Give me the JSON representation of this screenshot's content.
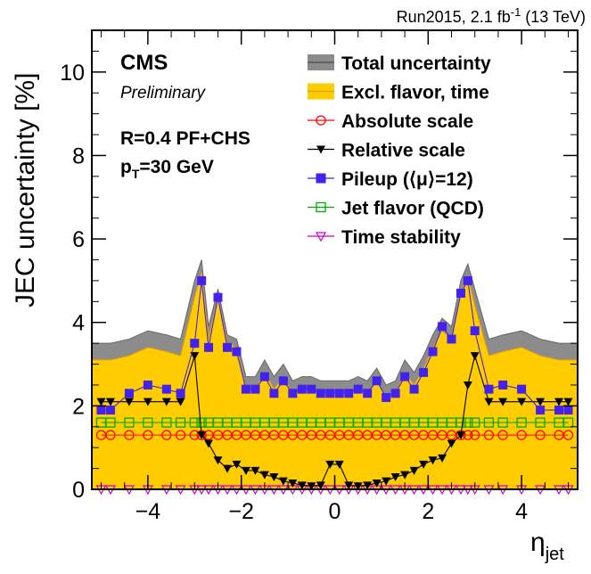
{
  "chart_data": {
    "type": "line",
    "lumi_label": "Run2015, 2.1 fb",
    "lumi_sup": "-1",
    "lumi_energy": " (13 TeV)",
    "cms_label": "CMS",
    "preliminary_label": "Preliminary",
    "info_line1": "R=0.4 PF+CHS",
    "info_line2_p": "p",
    "info_line2_sub": "T",
    "info_line2_rest": "=30 GeV",
    "ylabel": "JEC uncertainty [%]",
    "xlabel_main": "η",
    "xlabel_sub": "jet",
    "xlim": [
      -5.2,
      5.2
    ],
    "ylim": [
      0,
      11
    ],
    "x_ticks": [
      -4,
      -2,
      0,
      2,
      4
    ],
    "x_tick_labels": [
      "−4",
      "−2",
      "0",
      "2",
      "4"
    ],
    "y_ticks": [
      0,
      2,
      4,
      6,
      8,
      10
    ],
    "y_tick_labels": [
      "0",
      "2",
      "4",
      "6",
      "8",
      "10"
    ],
    "eta": [
      -5.0,
      -4.8,
      -4.4,
      -4.0,
      -3.6,
      -3.3,
      -3.0,
      -2.85,
      -2.7,
      -2.5,
      -2.3,
      -2.1,
      -1.9,
      -1.7,
      -1.5,
      -1.3,
      -1.1,
      -0.9,
      -0.7,
      -0.5,
      -0.3,
      -0.1,
      0.1,
      0.3,
      0.5,
      0.7,
      0.9,
      1.1,
      1.3,
      1.5,
      1.7,
      1.9,
      2.1,
      2.3,
      2.5,
      2.7,
      2.85,
      3.0,
      3.3,
      3.6,
      4.0,
      4.4,
      4.8,
      5.0
    ],
    "band_eta": [
      -5.2,
      -4.8,
      -4.4,
      -4.0,
      -3.6,
      -3.3,
      -3.0,
      -2.85,
      -2.7,
      -2.5,
      -2.3,
      -2.1,
      -1.9,
      -1.7,
      -1.5,
      -1.3,
      -1.1,
      -0.9,
      -0.7,
      -0.5,
      -0.3,
      -0.1,
      0.1,
      0.3,
      0.5,
      0.7,
      0.9,
      1.1,
      1.3,
      1.5,
      1.7,
      1.9,
      2.1,
      2.3,
      2.5,
      2.7,
      2.85,
      3.0,
      3.3,
      3.6,
      4.0,
      4.4,
      4.8,
      5.2
    ],
    "total_uncertainty": [
      3.5,
      3.5,
      3.6,
      3.8,
      3.7,
      3.6,
      5.0,
      5.5,
      3.9,
      4.8,
      3.7,
      3.6,
      2.7,
      2.7,
      3.1,
      2.7,
      3.0,
      2.6,
      2.7,
      2.7,
      2.6,
      2.6,
      2.6,
      2.6,
      2.7,
      2.6,
      2.9,
      2.5,
      2.6,
      3.1,
      2.8,
      3.2,
      3.7,
      4.1,
      3.9,
      5.0,
      5.4,
      4.8,
      3.6,
      3.7,
      3.8,
      3.6,
      3.5,
      3.5
    ],
    "excl_flavor_time": [
      3.1,
      3.1,
      3.2,
      3.4,
      3.3,
      3.2,
      4.6,
      5.2,
      3.6,
      4.6,
      3.5,
      3.4,
      2.4,
      2.4,
      2.8,
      2.4,
      2.7,
      2.3,
      2.4,
      2.4,
      2.3,
      2.3,
      2.3,
      2.3,
      2.4,
      2.3,
      2.6,
      2.2,
      2.3,
      2.8,
      2.5,
      2.9,
      3.4,
      3.8,
      3.6,
      4.7,
      5.1,
      4.4,
      3.2,
      3.3,
      3.4,
      3.2,
      3.1,
      3.1
    ],
    "series": [
      {
        "name": "Absolute scale",
        "values": [
          1.3,
          1.3,
          1.3,
          1.3,
          1.3,
          1.3,
          1.3,
          1.3,
          1.3,
          1.3,
          1.3,
          1.3,
          1.3,
          1.3,
          1.3,
          1.3,
          1.3,
          1.3,
          1.3,
          1.3,
          1.3,
          1.3,
          1.3,
          1.3,
          1.3,
          1.3,
          1.3,
          1.3,
          1.3,
          1.3,
          1.3,
          1.3,
          1.3,
          1.3,
          1.3,
          1.3,
          1.3,
          1.3,
          1.3,
          1.3,
          1.3,
          1.3,
          1.3,
          1.3
        ]
      },
      {
        "name": "Relative scale",
        "values": [
          2.1,
          2.1,
          2.1,
          2.1,
          2.1,
          2.1,
          3.2,
          1.3,
          1.1,
          0.7,
          0.5,
          0.6,
          0.45,
          0.45,
          0.35,
          0.3,
          0.2,
          0.15,
          0.1,
          0.08,
          0.1,
          0.6,
          0.6,
          0.1,
          0.08,
          0.1,
          0.15,
          0.2,
          0.3,
          0.35,
          0.45,
          0.6,
          0.7,
          0.75,
          1.1,
          1.3,
          2.5,
          3.2,
          2.1,
          2.1,
          2.1,
          2.1,
          2.1,
          2.1
        ]
      },
      {
        "name": "Pileup (⟨μ⟩=12)",
        "values": [
          1.9,
          1.9,
          2.3,
          2.5,
          2.4,
          2.3,
          3.5,
          5.0,
          3.4,
          4.6,
          3.4,
          3.3,
          2.4,
          2.4,
          2.7,
          2.3,
          2.6,
          2.3,
          2.4,
          2.4,
          2.3,
          2.3,
          2.3,
          2.3,
          2.4,
          2.3,
          2.6,
          2.2,
          2.3,
          2.7,
          2.4,
          2.8,
          3.3,
          3.9,
          3.6,
          4.7,
          5.0,
          3.8,
          2.4,
          2.5,
          2.4,
          1.9,
          1.9,
          1.9
        ]
      },
      {
        "name": "Jet flavor (QCD)",
        "values": [
          1.6,
          1.6,
          1.6,
          1.6,
          1.6,
          1.6,
          1.6,
          1.6,
          1.6,
          1.6,
          1.6,
          1.6,
          1.6,
          1.6,
          1.6,
          1.6,
          1.6,
          1.6,
          1.6,
          1.6,
          1.6,
          1.6,
          1.6,
          1.6,
          1.6,
          1.6,
          1.6,
          1.6,
          1.6,
          1.6,
          1.6,
          1.6,
          1.6,
          1.6,
          1.6,
          1.6,
          1.6,
          1.6,
          1.6,
          1.6,
          1.6,
          1.6,
          1.6,
          1.6
        ]
      },
      {
        "name": "Time stability",
        "values": [
          0.0,
          0.0,
          0.0,
          0.0,
          0.0,
          0.0,
          0.0,
          0.0,
          0.0,
          0.0,
          0.0,
          0.0,
          0.0,
          0.0,
          0.0,
          0.0,
          0.0,
          0.0,
          0.0,
          0.0,
          0.0,
          0.0,
          0.0,
          0.0,
          0.0,
          0.0,
          0.0,
          0.0,
          0.0,
          0.0,
          0.0,
          0.0,
          0.0,
          0.0,
          0.0,
          0.0,
          0.0,
          0.0,
          0.0,
          0.0,
          0.0,
          0.0,
          0.0,
          0.0
        ]
      }
    ],
    "legend": [
      {
        "label": "Total uncertainty",
        "style": "band",
        "color": "#8c8c8c"
      },
      {
        "label": "Excl. flavor, time",
        "style": "band",
        "color": "#ffcc00"
      },
      {
        "label": "Absolute scale",
        "style": "open-circle",
        "color": "#ff0000"
      },
      {
        "label": "Relative scale",
        "style": "filled-triangle-down",
        "color": "#000000"
      },
      {
        "label": "Pileup (⟨μ⟩=12)",
        "style": "filled-square",
        "color": "#4422ee"
      },
      {
        "label": "Jet flavor (QCD)",
        "style": "open-square",
        "color": "#00aa00"
      },
      {
        "label": "Time stability",
        "style": "open-triangle-down",
        "color": "#cc00cc"
      }
    ],
    "legend_position": "top-right",
    "grid": false
  }
}
